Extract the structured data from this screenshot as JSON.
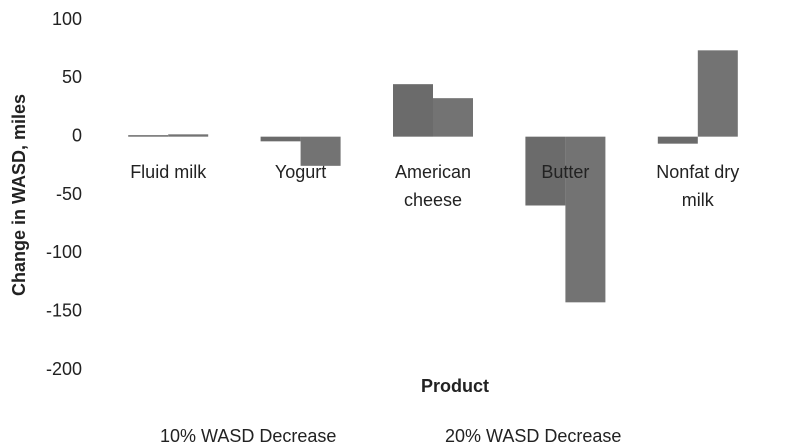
{
  "chart_data": {
    "type": "bar",
    "categories": [
      "Fluid milk",
      "Yogurt",
      "American cheese",
      "Butter",
      "Nonfat dry milk"
    ],
    "series": [
      {
        "name": "10% WASD Decrease",
        "color": "#6b6b6b",
        "values": [
          0.5,
          -4,
          45,
          -59,
          -6
        ]
      },
      {
        "name": "20% WASD Decrease",
        "color": "#737373",
        "values": [
          2,
          -25,
          33,
          -142,
          74
        ]
      }
    ],
    "ylim": [
      -200,
      100
    ],
    "yticks": [
      -200,
      -150,
      -100,
      -50,
      0,
      50,
      100
    ],
    "y_label": "Change in WASD, miles",
    "x_label": "Product",
    "legend": "bottom",
    "grid": false
  }
}
